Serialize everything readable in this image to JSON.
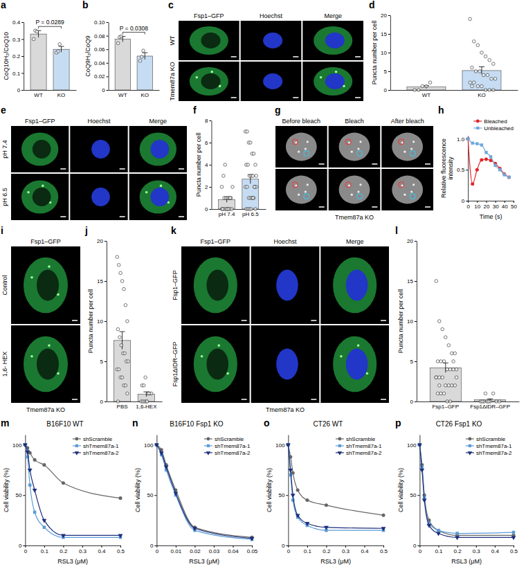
{
  "chart_data": [
    {
      "panel": "a",
      "type": "bar",
      "y_label": "CoQ10H₂/CoQ10",
      "categories": [
        "WT",
        "KO"
      ],
      "values": [
        0.33,
        0.24
      ],
      "errors": [
        0.02,
        0.017
      ],
      "points": [
        [
          0.3,
          0.35,
          0.345
        ],
        [
          0.22,
          0.228,
          0.27
        ]
      ],
      "colors": [
        "#d9d9d9",
        "#c6dcf2"
      ],
      "ylim": [
        0,
        0.4
      ],
      "yticks": [
        0,
        0.1,
        0.2,
        0.3,
        0.4
      ],
      "annotation": "P = 0.0289"
    },
    {
      "panel": "b",
      "type": "bar",
      "y_label": "CoQ9H₂/CoQ9",
      "categories": [
        "WT",
        "KO"
      ],
      "values": [
        0.075,
        0.05
      ],
      "errors": [
        0.004,
        0.005
      ],
      "points": [
        [
          0.069,
          0.078,
          0.079
        ],
        [
          0.043,
          0.049,
          0.058
        ]
      ],
      "colors": [
        "#d9d9d9",
        "#c6dcf2"
      ],
      "ylim": [
        0,
        0.1
      ],
      "yticks": [
        0,
        0.02,
        0.04,
        0.06,
        0.08,
        {
          "value": 0.1,
          "label": "0.10"
        }
      ],
      "annotation": "P = 0.0308"
    },
    {
      "panel": "c",
      "type": "image",
      "columns": [
        "Fsp1–GFP",
        "Hoechst",
        "Merge"
      ],
      "rows": [
        "WT",
        "Tmem87a KO"
      ]
    },
    {
      "panel": "d",
      "type": "bar",
      "y_label": "Puncta number per cell",
      "categories": [
        "WT",
        "KO"
      ],
      "values": [
        0.8,
        5.2
      ],
      "errors": [
        0.37,
        1.0
      ],
      "points": [
        [
          0,
          0,
          1,
          1,
          2
        ],
        [
          19,
          13,
          12,
          10,
          9,
          8,
          7,
          6,
          5,
          5,
          4,
          4,
          3,
          3,
          2,
          2,
          1,
          1,
          0,
          0,
          0,
          1
        ]
      ],
      "colors": [
        "#d9d9d9",
        "#c6dcf2"
      ],
      "ylim": [
        0,
        20
      ],
      "yticks": [
        0,
        5,
        10,
        15,
        20
      ]
    },
    {
      "panel": "e",
      "type": "image",
      "columns": [
        "Fsp1–GFP",
        "Hoechst",
        "Merge"
      ],
      "rows": [
        "pH 7.4",
        "pH 6.5"
      ]
    },
    {
      "panel": "f",
      "type": "bar",
      "y_label": "Puncta number per cell",
      "categories": [
        "pH 7.4",
        "pH 6.5"
      ],
      "values": [
        0.85,
        2.7
      ],
      "errors": [
        0.25,
        0.4
      ],
      "points": [
        [
          0,
          0,
          0,
          0,
          0,
          0,
          0,
          0,
          1,
          1,
          1,
          1,
          1,
          2,
          2,
          3,
          4,
          0,
          0,
          1
        ],
        [
          7,
          7,
          6,
          6,
          5,
          5,
          4,
          4,
          4,
          3,
          3,
          3,
          2,
          2,
          2,
          2,
          1,
          1,
          1,
          1,
          0,
          0,
          0,
          0,
          0,
          1,
          2,
          3
        ]
      ],
      "colors": [
        "#d9d9d9",
        "#c6dcf2"
      ],
      "ylim": [
        0,
        8
      ],
      "yticks": [
        0,
        2,
        4,
        6,
        8
      ]
    },
    {
      "panel": "g",
      "type": "image",
      "columns": [
        "Before bleach",
        "Bleach",
        "After bleach"
      ],
      "rows": [
        null,
        null
      ],
      "side_label": "Tmem87a KO"
    },
    {
      "panel": "h",
      "type": "line",
      "x_label": "Time (s)",
      "y_label": "Relative fluorescence intensity",
      "x": [
        0,
        5,
        10,
        15,
        20,
        25,
        30,
        35,
        40,
        45
      ],
      "series": [
        {
          "name": "Bleached",
          "color": "#e3262b",
          "marker": "circle",
          "values": [
            1.0,
            0.27,
            0.5,
            0.66,
            0.67,
            0.65,
            0.6,
            0.52,
            0.43,
            0.38
          ]
        },
        {
          "name": "Unbleached",
          "color": "#6fa8dc",
          "marker": "square",
          "values": [
            1.0,
            0.93,
            0.92,
            0.9,
            0.78,
            0.71,
            0.57,
            0.5,
            0.42,
            0.38
          ]
        }
      ],
      "xlim": [
        0,
        50
      ],
      "xticks": [
        0,
        10,
        20,
        30,
        40,
        50
      ],
      "ylim": [
        0,
        1.05
      ],
      "yticks": [
        0,
        0.5,
        {
          "value": 1,
          "label": "1.0"
        }
      ],
      "legend": "top"
    },
    {
      "panel": "i",
      "type": "image",
      "columns": [
        "Fsp1–GFP"
      ],
      "rows": [
        "Control",
        "1,6- HEX"
      ],
      "side_label": "Tmem87a KO"
    },
    {
      "panel": "j",
      "type": "bar",
      "y_label": "Puncta number per cell",
      "categories": [
        "PBS",
        "1,6-HEX"
      ],
      "values": [
        7.6,
        0.9
      ],
      "errors": [
        1.1,
        0.3
      ],
      "points": [
        [
          18,
          17,
          16,
          15,
          14,
          12,
          10,
          9,
          8,
          7,
          6,
          6,
          5,
          5,
          4,
          4,
          3,
          3,
          2,
          2,
          1,
          0
        ],
        [
          0,
          0,
          0,
          0,
          1,
          1,
          1,
          2,
          2,
          3,
          0,
          1
        ]
      ],
      "colors": [
        "#d9d9d9",
        "#d9d9d9"
      ],
      "ylim": [
        0,
        20
      ],
      "yticks": [
        0,
        5,
        10,
        15,
        20
      ]
    },
    {
      "panel": "k",
      "type": "image",
      "columns": [
        "Fsp1–GFP",
        "Hoechst",
        "Merge"
      ],
      "rows": [
        "Fsp1–GFP",
        "Fsp1ΔIDR–GFP"
      ],
      "side_label": "Tmem87a KO"
    },
    {
      "panel": "l",
      "type": "bar",
      "y_label": "Puncta number per cell",
      "categories": [
        "Fsp1–GFP",
        "Fsp1ΔIDR–GFP"
      ],
      "values": [
        4.2,
        0.2
      ],
      "errors": [
        0.6,
        0.13
      ],
      "points": [
        [
          15,
          10,
          9,
          8,
          7,
          6,
          6,
          5,
          5,
          5,
          4,
          4,
          4,
          3,
          3,
          3,
          3,
          2,
          2,
          2,
          2,
          1,
          1,
          1,
          0,
          0,
          5,
          4,
          3,
          2
        ],
        [
          0,
          0,
          0,
          0,
          1,
          0,
          0,
          0,
          1,
          0
        ]
      ],
      "colors": [
        "#d9d9d9",
        "#d9d9d9"
      ],
      "ylim": [
        0,
        20
      ],
      "yticks": [
        0,
        5,
        10,
        15,
        20
      ]
    },
    {
      "panel": "m",
      "type": "line",
      "title": "B16F10 WT",
      "x_label": "RSL3 (μM)",
      "y_label": "Cell viability (%)",
      "x": [
        0,
        0.0125,
        0.025,
        0.05,
        0.1,
        0.2,
        0.5
      ],
      "series": [
        {
          "name": "shScramble",
          "color": "#666666",
          "marker": "circle",
          "values": [
            100,
            97,
            92,
            85,
            80,
            62,
            47
          ]
        },
        {
          "name": "shTmem87a-1",
          "color": "#5b9bd5",
          "marker": "square",
          "values": [
            100,
            88,
            60,
            33,
            18,
            8,
            8
          ]
        },
        {
          "name": "shTmem87a-2",
          "color": "#1c2e7a",
          "marker": "triangle-down",
          "values": [
            100,
            93,
            75,
            55,
            25,
            10,
            10
          ]
        }
      ],
      "xlim": [
        0,
        0.5
      ],
      "xticks": [
        0,
        0.1,
        0.2,
        0.3,
        0.4,
        0.5
      ],
      "ylim": [
        0,
        110
      ],
      "yticks": [
        0,
        50,
        100
      ],
      "legend": "top-right"
    },
    {
      "panel": "n",
      "type": "line",
      "title": "B16F10 Fsp1 KO",
      "x_label": "RSL3 (μM)",
      "y_label": "Cell viability (%)",
      "x": [
        0,
        0.0025,
        0.005,
        0.01,
        0.02,
        0.05
      ],
      "series": [
        {
          "name": "shScramble",
          "color": "#666666",
          "marker": "circle",
          "values": [
            100,
            95,
            80,
            55,
            18,
            8
          ]
        },
        {
          "name": "shTmem87a-1",
          "color": "#5b9bd5",
          "marker": "square",
          "values": [
            100,
            90,
            75,
            50,
            15,
            6
          ]
        },
        {
          "name": "shTmem87a-2",
          "color": "#1c2e7a",
          "marker": "triangle-down",
          "values": [
            100,
            92,
            78,
            52,
            17,
            7
          ]
        }
      ],
      "xlim": [
        0,
        0.05
      ],
      "xticks": [
        0,
        0.01,
        0.02,
        0.03,
        0.04,
        0.05
      ],
      "ylim": [
        0,
        110
      ],
      "yticks": [
        0,
        50,
        100
      ],
      "legend": "top-right"
    },
    {
      "panel": "o",
      "type": "line",
      "title": "CT26 WT",
      "x_label": "RSL3 (μM)",
      "y_label": "Cell viability (%)",
      "x": [
        0,
        0.0125,
        0.025,
        0.05,
        0.1,
        0.2,
        0.5
      ],
      "series": [
        {
          "name": "shScramble",
          "color": "#666666",
          "marker": "circle",
          "values": [
            100,
            88,
            72,
            55,
            45,
            40,
            30
          ]
        },
        {
          "name": "shTmem87a-1",
          "color": "#5b9bd5",
          "marker": "square",
          "values": [
            100,
            70,
            45,
            28,
            20,
            15,
            15
          ]
        },
        {
          "name": "shTmem87a-2",
          "color": "#1c2e7a",
          "marker": "triangle-down",
          "values": [
            100,
            75,
            50,
            30,
            22,
            18,
            17
          ]
        }
      ],
      "xlim": [
        0,
        0.5
      ],
      "xticks": [
        0,
        0.1,
        0.2,
        0.3,
        0.4,
        0.5
      ],
      "ylim": [
        0,
        110
      ],
      "yticks": [
        0,
        50,
        100
      ],
      "legend": "top-right"
    },
    {
      "panel": "p",
      "type": "line",
      "title": "CT26 Fsp1 KO",
      "x_label": "RSL3 (μM)",
      "y_label": "Cell viability (%)",
      "x": [
        0,
        0.0125,
        0.025,
        0.05,
        0.1,
        0.2,
        0.5
      ],
      "series": [
        {
          "name": "shScramble",
          "color": "#666666",
          "marker": "circle",
          "values": [
            100,
            80,
            50,
            25,
            15,
            10,
            10
          ]
        },
        {
          "name": "shTmem87a-1",
          "color": "#5b9bd5",
          "marker": "square",
          "values": [
            100,
            78,
            48,
            22,
            15,
            12,
            13
          ]
        },
        {
          "name": "shTmem87a-2",
          "color": "#1c2e7a",
          "marker": "triangle-down",
          "values": [
            100,
            75,
            45,
            20,
            12,
            8,
            8
          ]
        }
      ],
      "xlim": [
        0,
        0.5
      ],
      "xticks": [
        0,
        0.1,
        0.2,
        0.3,
        0.4,
        0.5
      ],
      "ylim": [
        0,
        110
      ],
      "yticks": [
        0,
        50,
        100
      ],
      "legend": "top-right"
    }
  ]
}
